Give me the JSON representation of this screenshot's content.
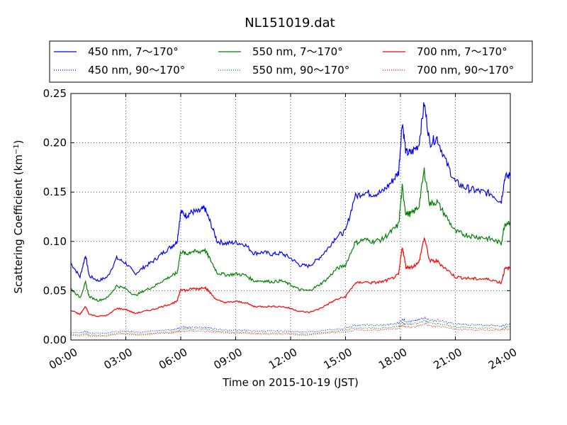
{
  "chart_data": {
    "type": "line",
    "title": "NL151019.dat",
    "xlabel": "Time on 2015-10-19 (JST)",
    "ylabel_main": "Scattering Coefficient (km",
    "ylabel_sup": "−1",
    "ylabel_end": ")",
    "xlim_hours": [
      0,
      24
    ],
    "ylim": [
      0,
      0.25
    ],
    "grid": true,
    "legend_placement": "top, above plot, 3 columns",
    "x_ticks": [
      "00:00",
      "03:00",
      "06:00",
      "09:00",
      "12:00",
      "15:00",
      "18:00",
      "21:00",
      "24:00"
    ],
    "y_ticks": [
      "0.00",
      "0.05",
      "0.10",
      "0.15",
      "0.20",
      "0.25"
    ],
    "x_hours": [
      0,
      0.5,
      0.8,
      1.0,
      1.5,
      2.0,
      2.5,
      3.0,
      3.5,
      4.0,
      4.5,
      5.0,
      5.5,
      5.8,
      6.0,
      6.3,
      6.6,
      7.0,
      7.3,
      7.6,
      8.0,
      8.5,
      9.0,
      9.5,
      10.0,
      10.5,
      11.0,
      11.5,
      12.0,
      12.5,
      13.0,
      13.5,
      14.0,
      14.5,
      15.0,
      15.5,
      16.0,
      16.5,
      17.0,
      17.5,
      17.9,
      18.1,
      18.3,
      18.6,
      19.0,
      19.3,
      19.6,
      20.0,
      20.5,
      21.0,
      21.5,
      22.0,
      22.5,
      23.0,
      23.5,
      23.7,
      24.0
    ],
    "series": [
      {
        "name": "450 nm, 7～170°",
        "color": "#0000ff",
        "style": "solid",
        "values": [
          0.078,
          0.064,
          0.086,
          0.065,
          0.06,
          0.064,
          0.083,
          0.078,
          0.067,
          0.074,
          0.08,
          0.088,
          0.095,
          0.1,
          0.13,
          0.126,
          0.13,
          0.13,
          0.134,
          0.12,
          0.1,
          0.098,
          0.099,
          0.097,
          0.088,
          0.089,
          0.087,
          0.088,
          0.083,
          0.076,
          0.075,
          0.082,
          0.092,
          0.105,
          0.11,
          0.145,
          0.15,
          0.148,
          0.15,
          0.16,
          0.17,
          0.222,
          0.19,
          0.19,
          0.198,
          0.24,
          0.2,
          0.205,
          0.18,
          0.16,
          0.155,
          0.152,
          0.15,
          0.148,
          0.14,
          0.165,
          0.167
        ]
      },
      {
        "name": "450 nm, 90～170°",
        "color": "#0000ff",
        "style": "dotted",
        "values": [
          0.008,
          0.007,
          0.009,
          0.007,
          0.007,
          0.007,
          0.009,
          0.009,
          0.008,
          0.008,
          0.009,
          0.01,
          0.01,
          0.011,
          0.013,
          0.013,
          0.013,
          0.013,
          0.013,
          0.012,
          0.011,
          0.01,
          0.01,
          0.01,
          0.009,
          0.009,
          0.009,
          0.009,
          0.009,
          0.008,
          0.008,
          0.009,
          0.01,
          0.011,
          0.012,
          0.015,
          0.015,
          0.015,
          0.015,
          0.016,
          0.017,
          0.021,
          0.019,
          0.019,
          0.02,
          0.023,
          0.02,
          0.02,
          0.018,
          0.016,
          0.016,
          0.015,
          0.015,
          0.015,
          0.014,
          0.016,
          0.016
        ]
      },
      {
        "name": "550 nm, 7～170°",
        "color": "#008000",
        "style": "solid",
        "values": [
          0.052,
          0.043,
          0.058,
          0.044,
          0.04,
          0.043,
          0.055,
          0.052,
          0.045,
          0.05,
          0.054,
          0.06,
          0.065,
          0.068,
          0.09,
          0.087,
          0.09,
          0.089,
          0.092,
          0.082,
          0.068,
          0.066,
          0.067,
          0.066,
          0.06,
          0.06,
          0.059,
          0.06,
          0.056,
          0.051,
          0.05,
          0.055,
          0.062,
          0.072,
          0.076,
          0.098,
          0.102,
          0.1,
          0.102,
          0.11,
          0.117,
          0.155,
          0.128,
          0.128,
          0.135,
          0.172,
          0.138,
          0.14,
          0.125,
          0.11,
          0.107,
          0.105,
          0.104,
          0.102,
          0.098,
          0.118,
          0.12
        ]
      },
      {
        "name": "550 nm, 90～170°",
        "color": "#008000",
        "style": "dotted",
        "values": [
          0.006,
          0.005,
          0.007,
          0.005,
          0.005,
          0.005,
          0.007,
          0.007,
          0.006,
          0.006,
          0.007,
          0.008,
          0.008,
          0.009,
          0.011,
          0.011,
          0.011,
          0.011,
          0.011,
          0.01,
          0.009,
          0.008,
          0.008,
          0.008,
          0.007,
          0.007,
          0.007,
          0.007,
          0.007,
          0.006,
          0.006,
          0.007,
          0.008,
          0.009,
          0.01,
          0.012,
          0.012,
          0.012,
          0.012,
          0.013,
          0.014,
          0.018,
          0.016,
          0.016,
          0.017,
          0.02,
          0.017,
          0.017,
          0.015,
          0.013,
          0.013,
          0.012,
          0.012,
          0.012,
          0.011,
          0.013,
          0.013
        ]
      },
      {
        "name": "700 nm, 7～170°",
        "color": "#ff0000",
        "style": "solid",
        "values": [
          0.03,
          0.026,
          0.034,
          0.026,
          0.024,
          0.025,
          0.032,
          0.031,
          0.027,
          0.029,
          0.031,
          0.034,
          0.037,
          0.039,
          0.052,
          0.05,
          0.052,
          0.052,
          0.054,
          0.048,
          0.04,
          0.038,
          0.039,
          0.038,
          0.034,
          0.034,
          0.034,
          0.034,
          0.032,
          0.029,
          0.028,
          0.031,
          0.036,
          0.041,
          0.044,
          0.057,
          0.059,
          0.058,
          0.059,
          0.062,
          0.066,
          0.095,
          0.074,
          0.074,
          0.078,
          0.104,
          0.08,
          0.08,
          0.072,
          0.064,
          0.063,
          0.062,
          0.062,
          0.061,
          0.058,
          0.072,
          0.073
        ]
      },
      {
        "name": "700 nm, 90～170°",
        "color": "#ff0000",
        "style": "dotted",
        "values": [
          0.005,
          0.004,
          0.006,
          0.004,
          0.004,
          0.004,
          0.006,
          0.006,
          0.005,
          0.005,
          0.006,
          0.007,
          0.007,
          0.008,
          0.009,
          0.009,
          0.009,
          0.009,
          0.009,
          0.008,
          0.008,
          0.007,
          0.007,
          0.007,
          0.006,
          0.006,
          0.006,
          0.006,
          0.006,
          0.005,
          0.005,
          0.006,
          0.007,
          0.008,
          0.008,
          0.01,
          0.01,
          0.01,
          0.01,
          0.011,
          0.012,
          0.015,
          0.013,
          0.013,
          0.014,
          0.017,
          0.014,
          0.014,
          0.013,
          0.011,
          0.011,
          0.01,
          0.01,
          0.01,
          0.01,
          0.011,
          0.011
        ]
      }
    ]
  }
}
